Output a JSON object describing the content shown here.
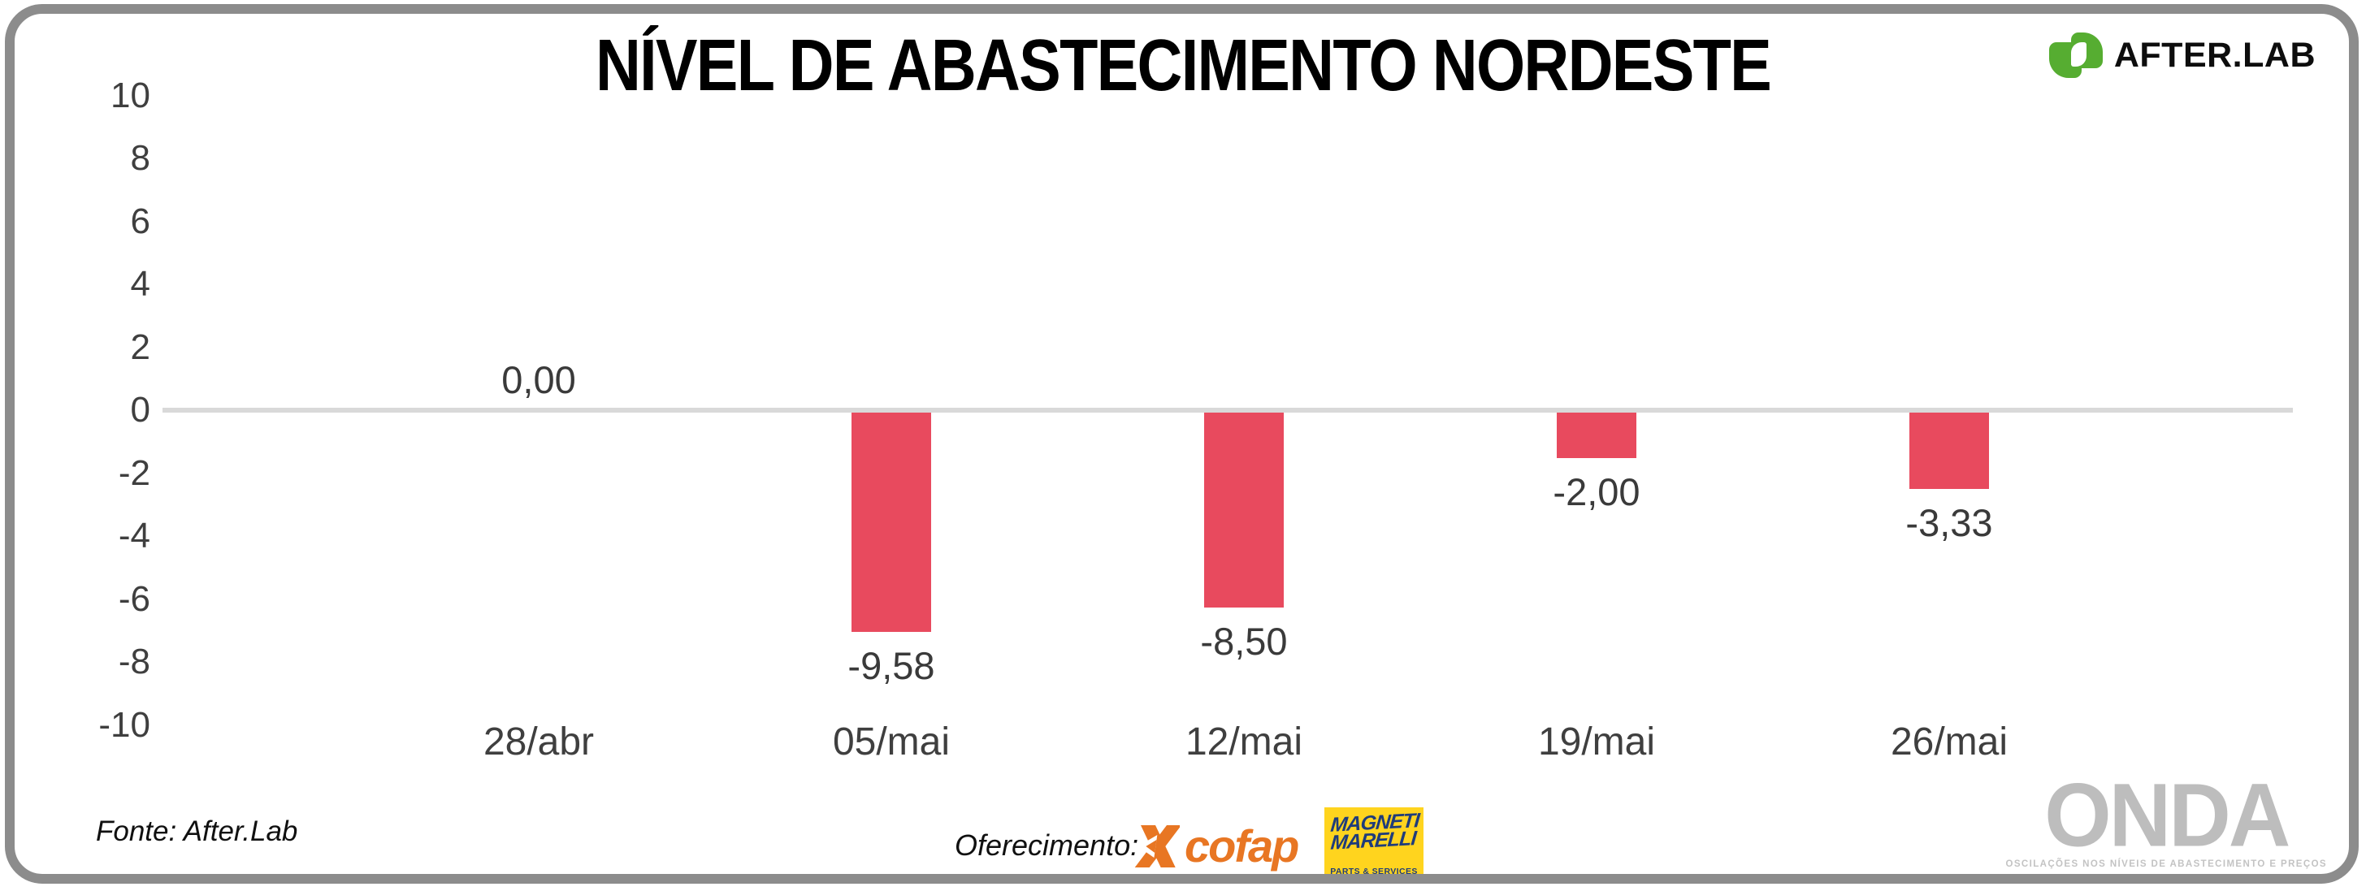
{
  "header": {
    "title": "NÍVEL DE ABASTECIMENTO NORDESTE"
  },
  "brand": {
    "name": "AFTER.LAB",
    "green": "#56ad31"
  },
  "chart_data": {
    "type": "bar",
    "title": "NÍVEL DE ABASTECIMENTO NORDESTE",
    "categories": [
      "28/abr",
      "05/mai",
      "12/mai",
      "19/mai",
      "26/mai"
    ],
    "values": [
      0,
      -9.58,
      -8.5,
      -2,
      -3.33
    ],
    "value_labels": [
      "0,00",
      "-9,58",
      "-8,50",
      "-2,00",
      "-3,33"
    ],
    "xlabel": "",
    "ylabel": "",
    "ylim": [
      -10,
      10
    ],
    "yticks": [
      10,
      8,
      6,
      4,
      2,
      0,
      -2,
      -4,
      -6,
      -8,
      -10
    ],
    "bar_color": "#e84a5e",
    "baseline_color": "#d9d9d9",
    "grid": false,
    "legend": false
  },
  "footer": {
    "source": "Fonte: After.Lab",
    "sponsor_label": "Oferecimento:",
    "cofap": {
      "name": "cofap",
      "orange": "#e87623"
    },
    "marelli": {
      "line1": "MAGNETI",
      "line2": "MARELLI",
      "sub": "PARTS & SERVICES",
      "yellow": "#ffd41e",
      "navy": "#1f3c7b"
    },
    "watermark": {
      "title": "ONDA",
      "subtitle": "OSCILAÇÕES NOS NÍVEIS DE ABASTECIMENTO E PREÇOS",
      "gray": "#bdbdbd"
    }
  },
  "colors": {
    "frame": "#8c8c8c",
    "text_dark": "#3d3d3d"
  }
}
